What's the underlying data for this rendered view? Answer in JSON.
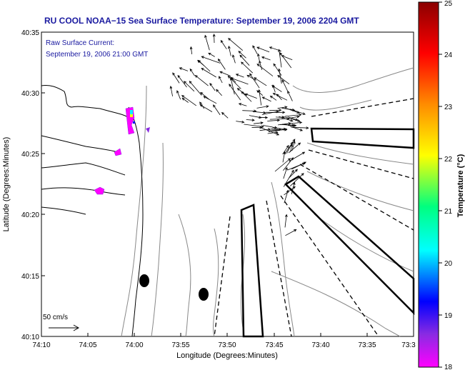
{
  "title": "RU COOL  NOAA−15  Sea Surface Temperature:  September 19, 2006 2204 GMT",
  "annotation": {
    "line1": "Raw Surface Current:",
    "line2": "September 19, 2006 21:00 GMT"
  },
  "axes": {
    "xlabel": "Longitude (Degrees:Minutes)",
    "ylabel": "Latitude (Degrees:Minutes)",
    "xticks": [
      "74:10",
      "74:05",
      "74:00",
      "73:55",
      "73:50",
      "73:45",
      "73:40",
      "73:35",
      "73:3"
    ],
    "yticks": [
      "40:35",
      "40:30",
      "40:25",
      "40:20",
      "40:15",
      "40:10"
    ]
  },
  "scale_label": "50 cm/s",
  "colorbar": {
    "label": "Temperature (°C)",
    "ticks": [
      "25",
      "24",
      "23",
      "22",
      "21",
      "20",
      "19",
      "18"
    ],
    "colors": [
      "#8b0000",
      "#ff0000",
      "#ff8c00",
      "#ffff00",
      "#00ff7f",
      "#00ffff",
      "#0000ff",
      "#8a2be2",
      "#ff00ff"
    ]
  },
  "map_colors": {
    "coast": "#000000",
    "contour": "#888888",
    "lane": "#000000"
  }
}
